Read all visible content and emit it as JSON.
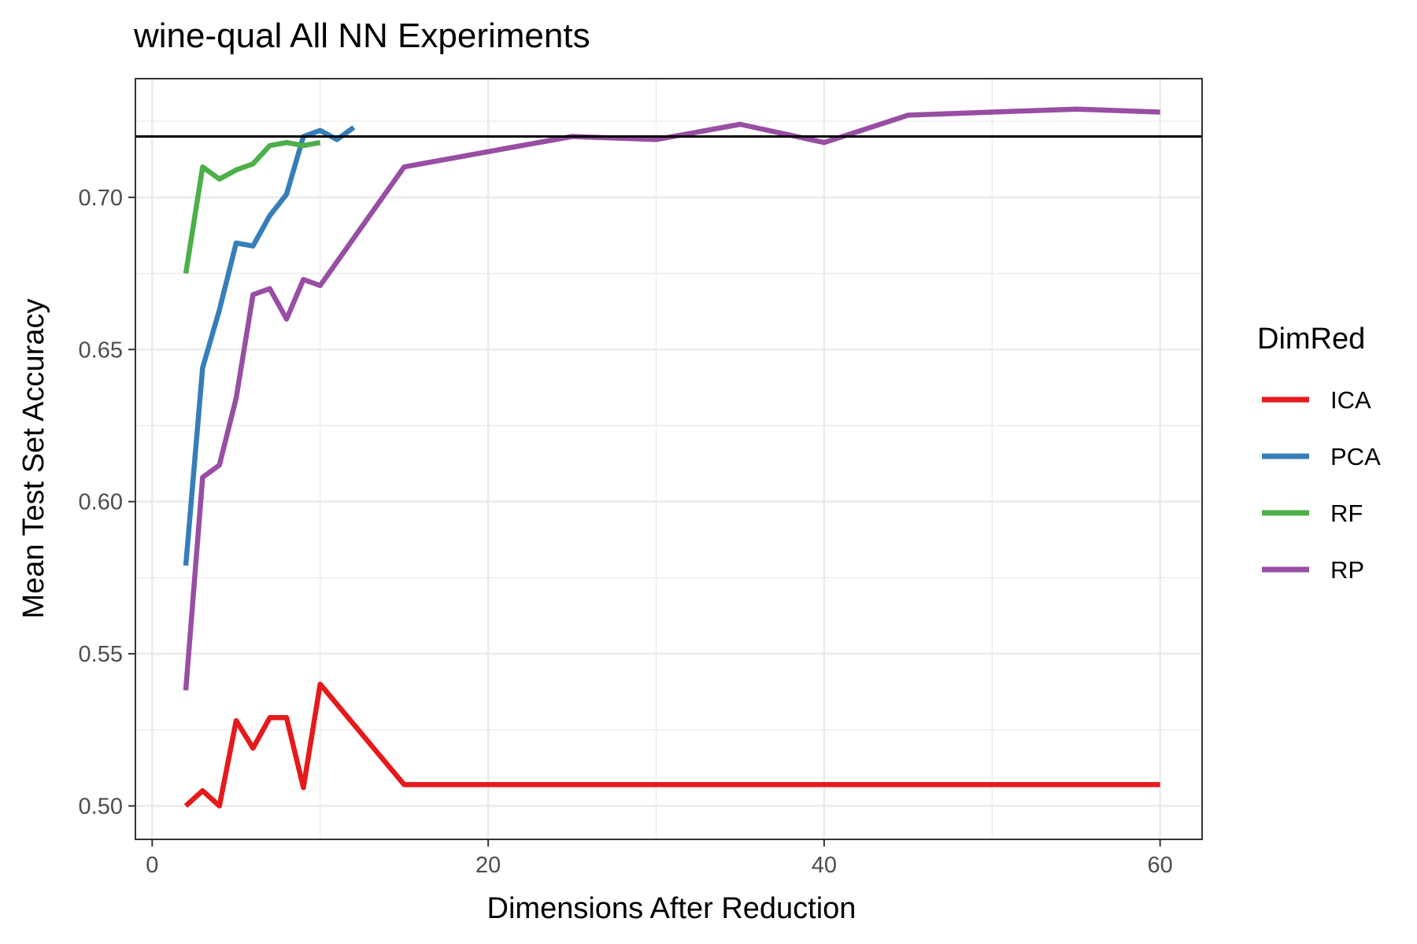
{
  "chart_data": {
    "type": "line",
    "title": "wine-qual All NN Experiments",
    "xlabel": "Dimensions After Reduction",
    "ylabel": "Mean Test Set Accuracy",
    "xlim": [
      -1,
      62.5
    ],
    "ylim": [
      0.489,
      0.739
    ],
    "x_ticks": [
      0,
      20,
      40,
      60
    ],
    "x_tick_labels": [
      "0",
      "20",
      "40",
      "60"
    ],
    "y_ticks": [
      0.5,
      0.55,
      0.6,
      0.65,
      0.7
    ],
    "y_tick_labels": [
      "0.50",
      "0.55",
      "0.60",
      "0.65",
      "0.70"
    ],
    "grid": true,
    "legend": {
      "title": "DimRed",
      "position": "right"
    },
    "hline": {
      "y": 0.72,
      "color": "#000000"
    },
    "series": [
      {
        "name": "ICA",
        "color": "#e41a1c",
        "x": [
          2,
          3,
          4,
          5,
          6,
          7,
          8,
          9,
          10,
          15,
          20,
          25,
          30,
          35,
          40,
          45,
          50,
          55,
          60
        ],
        "values": [
          0.5,
          0.505,
          0.5,
          0.528,
          0.519,
          0.529,
          0.529,
          0.506,
          0.54,
          0.507,
          0.507,
          0.507,
          0.507,
          0.507,
          0.507,
          0.507,
          0.507,
          0.507,
          0.507
        ]
      },
      {
        "name": "PCA",
        "color": "#377eb8",
        "x": [
          2,
          3,
          4,
          5,
          6,
          7,
          8,
          9,
          10,
          11,
          12
        ],
        "values": [
          0.579,
          0.644,
          0.663,
          0.685,
          0.684,
          0.694,
          0.701,
          0.72,
          0.722,
          0.719,
          0.723
        ]
      },
      {
        "name": "RF",
        "color": "#4daf4a",
        "x": [
          2,
          3,
          4,
          5,
          6,
          7,
          8,
          9,
          10
        ],
        "values": [
          0.675,
          0.71,
          0.706,
          0.709,
          0.711,
          0.717,
          0.718,
          0.717,
          0.718
        ]
      },
      {
        "name": "RP",
        "color": "#984ea3",
        "x": [
          2,
          3,
          4,
          5,
          6,
          7,
          8,
          9,
          10,
          15,
          20,
          25,
          30,
          35,
          40,
          45,
          50,
          55,
          60
        ],
        "values": [
          0.538,
          0.608,
          0.612,
          0.634,
          0.668,
          0.67,
          0.66,
          0.673,
          0.671,
          0.71,
          0.715,
          0.72,
          0.719,
          0.724,
          0.718,
          0.727,
          0.728,
          0.729,
          0.728
        ]
      }
    ]
  }
}
